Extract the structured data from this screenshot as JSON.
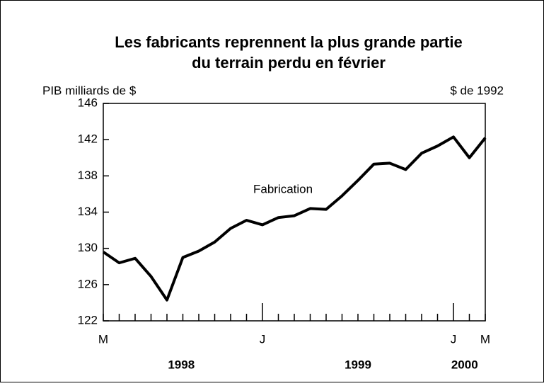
{
  "chart_data": {
    "type": "line",
    "title": [
      "Les fabricants reprennent la plus grande partie",
      "du terrain perdu en février"
    ],
    "y_label": "PIB milliards de $",
    "y_label_right": "$ de 1992",
    "categories": [
      "M",
      null,
      null,
      null,
      null,
      null,
      null,
      null,
      null,
      null,
      "J",
      null,
      null,
      null,
      null,
      null,
      null,
      null,
      null,
      null,
      null,
      null,
      "J",
      null,
      "M"
    ],
    "years": [
      "1998",
      "1999",
      "2000"
    ],
    "series": [
      {
        "name": "Fabrication",
        "color": "#000000",
        "values": [
          129.6,
          128.4,
          128.9,
          126.9,
          124.3,
          129.0,
          129.7,
          130.7,
          132.2,
          133.1,
          132.6,
          133.4,
          133.6,
          134.4,
          134.3,
          135.8,
          137.5,
          139.3,
          139.4,
          138.7,
          140.5,
          141.3,
          142.3,
          140.0,
          142.2
        ]
      }
    ],
    "ylim": [
      122,
      146
    ],
    "yticks": [
      122,
      126,
      130,
      134,
      138,
      142,
      146
    ],
    "grid": false
  }
}
